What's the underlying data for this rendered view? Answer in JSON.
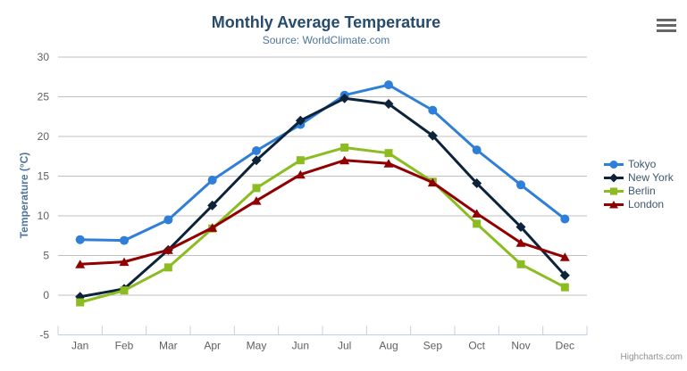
{
  "chart": {
    "credits": "Highcharts.com",
    "icons": {
      "context_menu": "hamburger-icon"
    },
    "colors": {
      "background": "#ffffff",
      "title": "#274b6d",
      "subtitle": "#4d759e",
      "axis_title": "#4d759e",
      "axis_label": "#606060",
      "axis_line": "#c0d0e0",
      "gridline": "#c0c0c0",
      "legend_text": "#3e576f",
      "credits": "#909090"
    }
  },
  "chart_data": {
    "type": "line",
    "title": "Monthly Average Temperature",
    "subtitle": "Source: WorldClimate.com",
    "xlabel": "",
    "ylabel": "Temperature (°C)",
    "ylim": [
      -5,
      30
    ],
    "ytick_step": 5,
    "yticks": [
      -5,
      0,
      5,
      10,
      15,
      20,
      25,
      30
    ],
    "grid": true,
    "legend_position": "right",
    "categories": [
      "Jan",
      "Feb",
      "Mar",
      "Apr",
      "May",
      "Jun",
      "Jul",
      "Aug",
      "Sep",
      "Oct",
      "Nov",
      "Dec"
    ],
    "series": [
      {
        "name": "Tokyo",
        "color": "#2f7ed8",
        "marker": "circle",
        "values": [
          7.0,
          6.9,
          9.5,
          14.5,
          18.2,
          21.5,
          25.2,
          26.5,
          23.3,
          18.3,
          13.9,
          9.6
        ]
      },
      {
        "name": "New York",
        "color": "#0d233a",
        "marker": "diamond",
        "values": [
          -0.2,
          0.8,
          5.7,
          11.3,
          17.0,
          22.0,
          24.8,
          24.1,
          20.1,
          14.1,
          8.6,
          2.5
        ]
      },
      {
        "name": "Berlin",
        "color": "#8bbc21",
        "marker": "square",
        "values": [
          -0.9,
          0.6,
          3.5,
          8.4,
          13.5,
          17.0,
          18.6,
          17.9,
          14.3,
          9.0,
          3.9,
          1.0
        ]
      },
      {
        "name": "London",
        "color": "#910000",
        "marker": "triangle",
        "values": [
          3.9,
          4.2,
          5.7,
          8.5,
          11.9,
          15.2,
          17.0,
          16.6,
          14.2,
          10.3,
          6.6,
          4.8
        ]
      }
    ]
  }
}
